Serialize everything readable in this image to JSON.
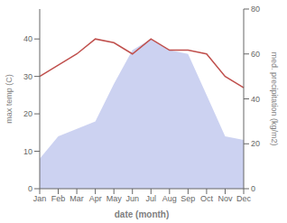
{
  "chart_data": {
    "type": "line",
    "xlabel": "date (month)",
    "ylabel": "max temp (C)",
    "y2label": "med. precipitation (kg/m2)",
    "categories": [
      "Jan",
      "Feb",
      "Mar",
      "Apr",
      "May",
      "Jun",
      "Jul",
      "Aug",
      "Sep",
      "Oct",
      "Nov",
      "Dec"
    ],
    "series": [
      {
        "type": "area",
        "color": "#aab4e8",
        "values": [
          8,
          14,
          16,
          18,
          28,
          37,
          40,
          37,
          36,
          25,
          14,
          13
        ]
      },
      {
        "type": "line",
        "color": "#c0504d",
        "values": [
          30,
          33,
          36,
          40,
          39,
          36,
          40,
          37,
          37,
          36,
          30,
          27
        ]
      }
    ],
    "ylim": [
      0,
      48
    ],
    "yticks": [
      0,
      10,
      20,
      30,
      40
    ],
    "y2lim": [
      0,
      80
    ],
    "y2ticks": [
      0,
      20,
      40,
      60,
      80
    ],
    "grid": false
  }
}
